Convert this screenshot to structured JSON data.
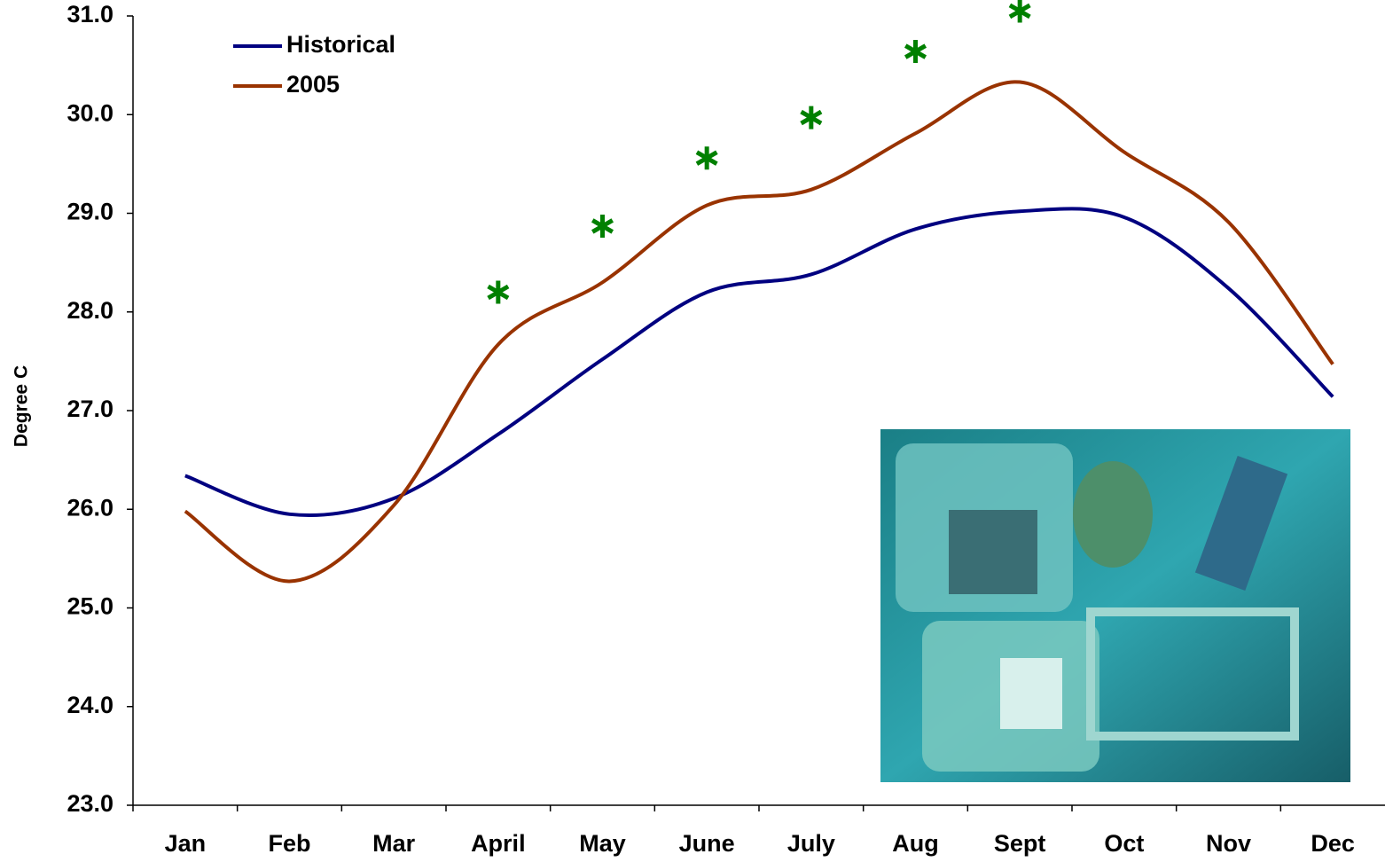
{
  "chart_data": {
    "type": "line",
    "y_label": "Degree C",
    "categories": [
      "Jan",
      "Feb",
      "Mar",
      "April",
      "May",
      "June",
      "July",
      "Aug",
      "Sept",
      "Oct",
      "Nov",
      "Dec"
    ],
    "series": [
      {
        "name": "Historical",
        "color": "#000080",
        "values": [
          26.34,
          25.95,
          26.11,
          26.76,
          27.52,
          28.2,
          28.38,
          28.84,
          29.02,
          28.96,
          28.24,
          27.14
        ]
      },
      {
        "name": "2005",
        "color": "#993300",
        "values": [
          25.98,
          25.27,
          26.04,
          27.67,
          28.3,
          29.08,
          29.24,
          29.81,
          30.33,
          29.62,
          28.91,
          27.47
        ]
      }
    ],
    "markers": {
      "color": "#008000",
      "values": [
        null,
        null,
        null,
        28.2,
        28.87,
        29.56,
        29.97,
        30.64,
        31.05,
        null,
        null,
        null
      ]
    },
    "ylim": [
      23,
      31
    ],
    "yticks": [
      {
        "value": 23,
        "label": "23.0"
      },
      {
        "value": 24,
        "label": "24.0"
      },
      {
        "value": 25,
        "label": "25.0"
      },
      {
        "value": 26,
        "label": "26.0"
      },
      {
        "value": 27,
        "label": "27.0"
      },
      {
        "value": 28,
        "label": "28.0"
      },
      {
        "value": 29,
        "label": "29.0"
      },
      {
        "value": 30,
        "label": "30.0"
      },
      {
        "value": 31,
        "label": "31.0"
      }
    ],
    "grid": false,
    "legend": "upper-left"
  }
}
